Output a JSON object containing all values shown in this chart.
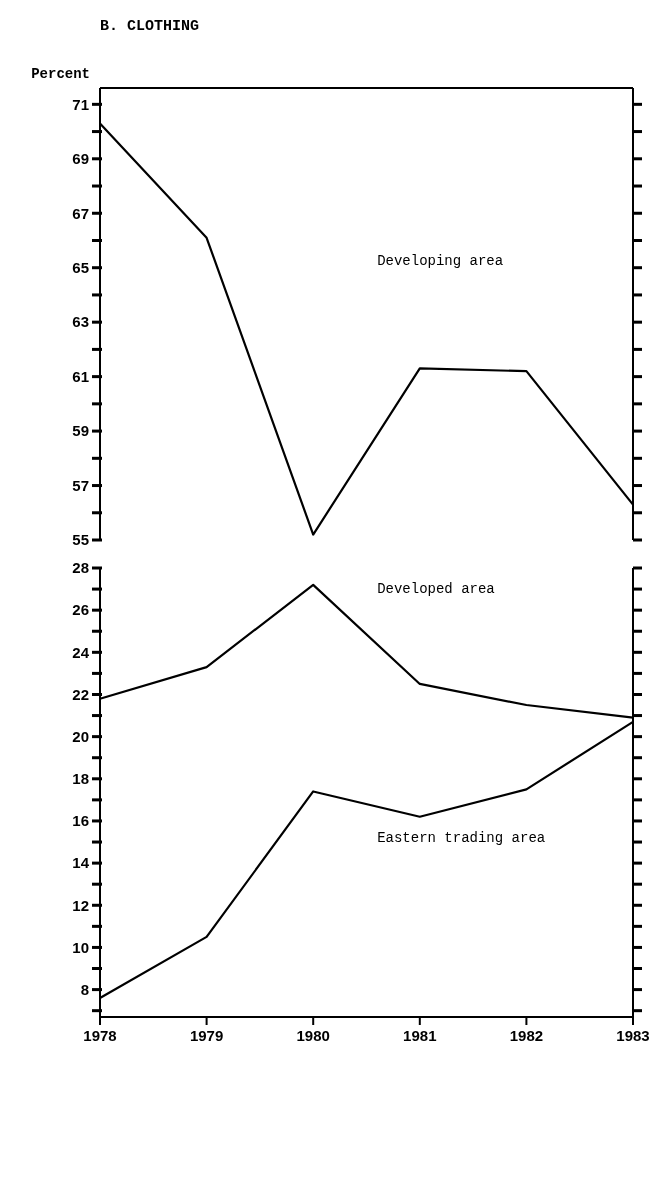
{
  "chart_data": [
    {
      "type": "line",
      "title": "B.  CLOTHING",
      "ylabel": "Percent",
      "x": [
        1978,
        1979,
        1980,
        1981,
        1982,
        1983
      ],
      "xlim": [
        1978,
        1983
      ],
      "xticks": [
        1978,
        1979,
        1980,
        1981,
        1982,
        1983
      ],
      "ylim": [
        55,
        71.6
      ],
      "yticks": [
        55,
        {
          "value": 56,
          "label": null
        },
        57,
        {
          "value": 58,
          "label": null
        },
        59,
        {
          "value": 60,
          "label": null
        },
        61,
        {
          "value": 62,
          "label": null
        },
        63,
        {
          "value": 64,
          "label": null
        },
        65,
        {
          "value": 66,
          "label": null
        },
        67,
        {
          "value": 68,
          "label": null
        },
        69,
        {
          "value": 70,
          "label": null
        },
        71
      ],
      "tick_labels": "y",
      "grid": false,
      "marker": "none",
      "line_style": "solid",
      "series": [
        {
          "name": "Developing area",
          "color": "#000000",
          "values": [
            70.3,
            66.1,
            55.2,
            61.3,
            61.2,
            56.3
          ]
        }
      ]
    },
    {
      "type": "line",
      "x": [
        1978,
        1979,
        1980,
        1981,
        1982,
        1983
      ],
      "xlim": [
        1978,
        1983
      ],
      "xticks": [
        1978,
        1979,
        1980,
        1981,
        1982,
        1983
      ],
      "ylim": [
        6.7,
        28
      ],
      "yticks": [
        {
          "value": 7,
          "label": null
        },
        8,
        {
          "value": 9,
          "label": null
        },
        10,
        {
          "value": 11,
          "label": null
        },
        12,
        {
          "value": 13,
          "label": null
        },
        14,
        {
          "value": 15,
          "label": null
        },
        16,
        {
          "value": 17,
          "label": null
        },
        18,
        {
          "value": 19,
          "label": null
        },
        20,
        {
          "value": 21,
          "label": null
        },
        22,
        {
          "value": 23,
          "label": null
        },
        24,
        {
          "value": 25,
          "label": null
        },
        26,
        {
          "value": 27,
          "label": null
        },
        28
      ],
      "grid": false,
      "marker": "none",
      "line_style": "solid",
      "series": [
        {
          "name": "Developed area",
          "color": "#000000",
          "values": [
            21.8,
            23.3,
            27.2,
            22.5,
            21.5,
            20.9
          ]
        },
        {
          "name": "Eastern trading area",
          "color": "#000000",
          "values": [
            7.6,
            10.5,
            17.4,
            16.2,
            17.5,
            20.7
          ]
        }
      ]
    }
  ]
}
